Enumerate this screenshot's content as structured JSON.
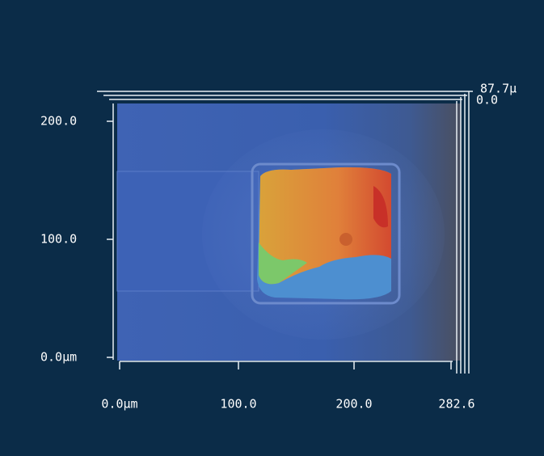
{
  "axes": {
    "y_labels": [
      "200.0",
      "100.0",
      "0.0μm"
    ],
    "x_labels": [
      "0.0μm",
      "100.0",
      "200.0",
      "282.6"
    ],
    "z_labels": [
      "87.7μ",
      "0.0"
    ]
  }
}
